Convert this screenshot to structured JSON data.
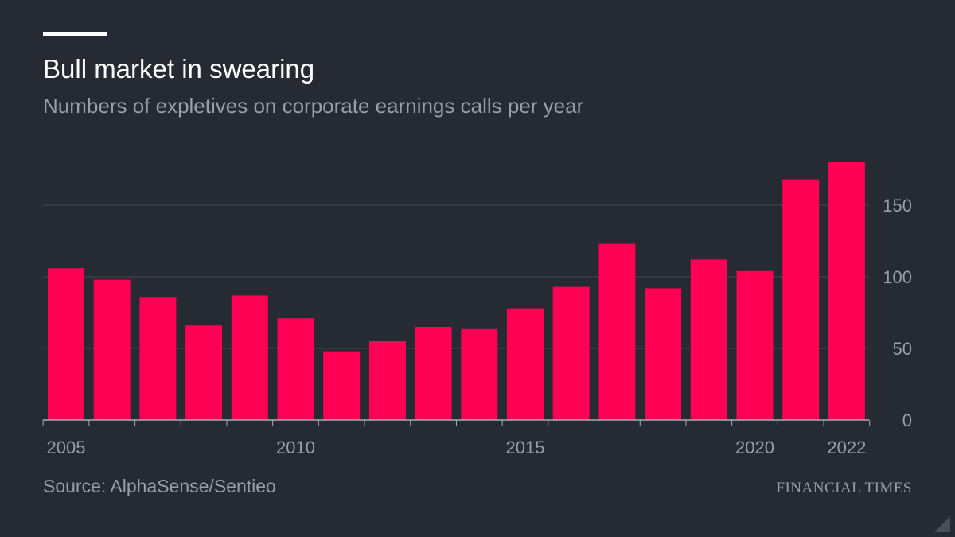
{
  "header": {
    "title": "Bull market in swearing",
    "subtitle": "Numbers of expletives on corporate earnings calls per year"
  },
  "footer": {
    "source": "Source: AlphaSense/Sentieo",
    "brand": "FINANCIAL TIMES"
  },
  "colors": {
    "background": "#262a33",
    "bar": "#ff0055",
    "grid": "#464a53",
    "text_muted": "#9a9ea8"
  },
  "chart_data": {
    "type": "bar",
    "title": "Bull market in swearing",
    "subtitle": "Numbers of expletives on corporate earnings calls per year",
    "categories": [
      "2005",
      "2006",
      "2007",
      "2008",
      "2009",
      "2010",
      "2011",
      "2012",
      "2013",
      "2014",
      "2015",
      "2016",
      "2017",
      "2018",
      "2019",
      "2020",
      "2021",
      "2022"
    ],
    "values": [
      106,
      98,
      86,
      66,
      87,
      71,
      48,
      55,
      65,
      64,
      78,
      93,
      123,
      92,
      112,
      104,
      168,
      180
    ],
    "x_tick_labels": [
      "2005",
      "2010",
      "2015",
      "2020",
      "2022"
    ],
    "y_ticks": [
      0,
      50,
      100,
      150
    ],
    "ylim": [
      0,
      180
    ],
    "y_axis_side": "right",
    "grid": true,
    "xlabel": "",
    "ylabel": ""
  }
}
